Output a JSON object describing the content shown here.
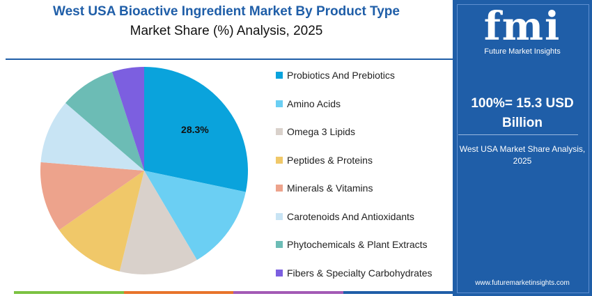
{
  "header": {
    "title": "West USA Bioactive Ingredient Market By Product Type",
    "subtitle": "Market Share (%) Analysis, 2025"
  },
  "chart_data": {
    "type": "pie",
    "title": "West USA Bioactive Ingredient Market By Product Type",
    "subtitle": "Market Share (%) Analysis, 2025",
    "categories": [
      "Probiotics And Prebiotics",
      "Amino Acids",
      "Omega 3 Lipids",
      "Peptides & Proteins",
      "Minerals & Vitamins",
      "Carotenoids And Antioxidants",
      "Phytochemicals & Plant Extracts",
      "Fibers & Specialty Carbohydrates"
    ],
    "values": [
      28.3,
      13.2,
      12.3,
      11.5,
      11.0,
      10.0,
      8.7,
      5.0
    ],
    "colors": [
      "#0aa3dc",
      "#6bcff3",
      "#d9d1cb",
      "#f0c869",
      "#eda38c",
      "#c8e4f4",
      "#6cbcb5",
      "#7c5fe0"
    ],
    "data_labels": [
      {
        "index": 0,
        "text": "28.3%"
      }
    ],
    "legend": "right"
  },
  "sidebar": {
    "logo_text": "fmi",
    "logo_subtitle": "Future Market Insights",
    "total_line1": "100%= 15.3 USD",
    "total_line2": "Billion",
    "description_line1": "West USA Market Share Analysis,",
    "description_line2": "2025",
    "url": "www.futuremarketinsights.com"
  },
  "bottom_bar_colors": [
    "#7cc242",
    "#e8742a",
    "#a35ab5",
    "#1f5ea8"
  ]
}
